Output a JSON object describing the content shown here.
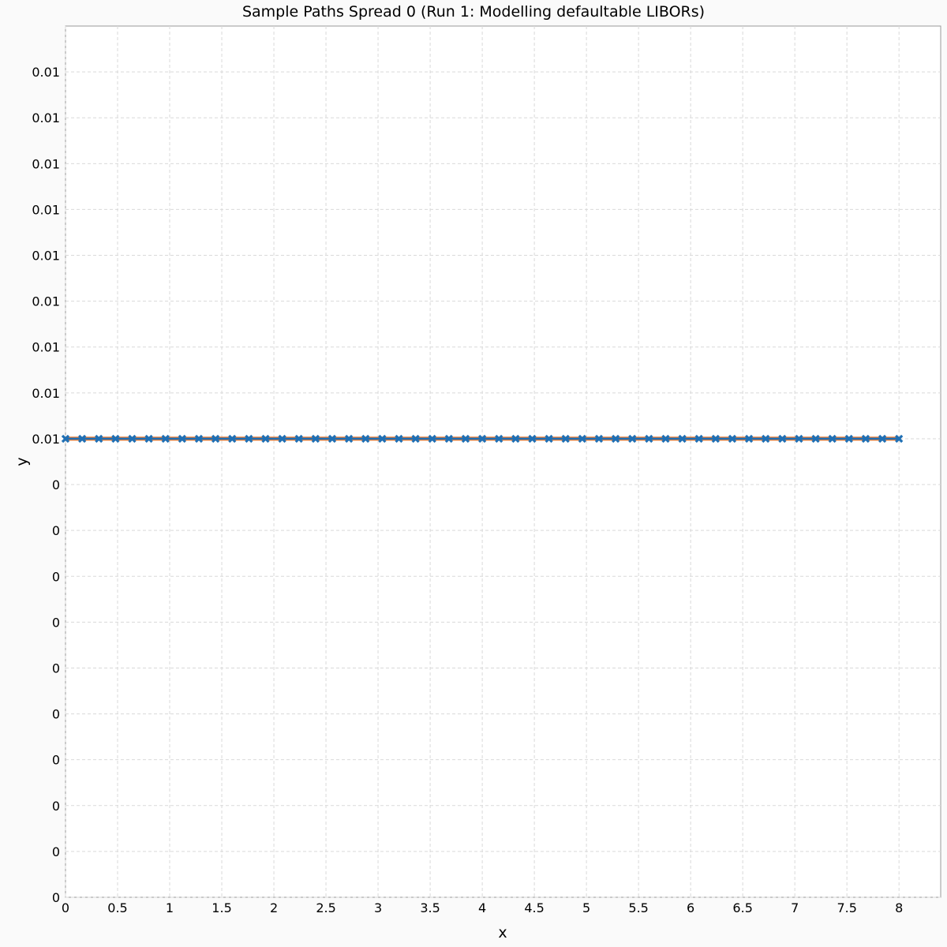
{
  "chart_data": {
    "type": "line",
    "title": "Sample Paths Spread 0 (Run 1: Modelling defaultable LIBORs)",
    "xlabel": "x",
    "ylabel": "y",
    "xlim": [
      0,
      8.4
    ],
    "ylim": [
      0,
      0.0095
    ],
    "x_ticks": [
      0,
      0.5,
      1,
      1.5,
      2,
      2.5,
      3,
      3.5,
      4,
      4.5,
      5,
      5.5,
      6,
      6.5,
      7,
      7.5,
      8
    ],
    "x_tick_labels": [
      "0",
      "0.5",
      "1",
      "1.5",
      "2",
      "2.5",
      "3",
      "3.5",
      "4",
      "4.5",
      "5",
      "5.5",
      "6",
      "6.5",
      "7",
      "7.5",
      "8"
    ],
    "y_ticks": [
      0,
      0.0005,
      0.001,
      0.0015,
      0.002,
      0.0025,
      0.003,
      0.0035,
      0.004,
      0.0045,
      0.005,
      0.0055,
      0.006,
      0.0065,
      0.007,
      0.0075,
      0.008,
      0.0085,
      0.009
    ],
    "y_tick_labels": [
      "0",
      "0",
      "0",
      "0",
      "0",
      "0",
      "0",
      "0",
      "0",
      "0",
      "0.01",
      "0.01",
      "0.01",
      "0.01",
      "0.01",
      "0.01",
      "0.01",
      "0.01",
      "0.01"
    ],
    "grid": true,
    "legend": "none",
    "series": [
      {
        "color": "#e8772e",
        "marker": "none",
        "x_start": 0,
        "x_step": 0.16,
        "count": 51,
        "value": 0.005
      },
      {
        "color": "#1f6fb4",
        "marker": "x",
        "x_start": 0,
        "x_step": 0.16,
        "count": 51,
        "value": 0.005
      }
    ]
  }
}
